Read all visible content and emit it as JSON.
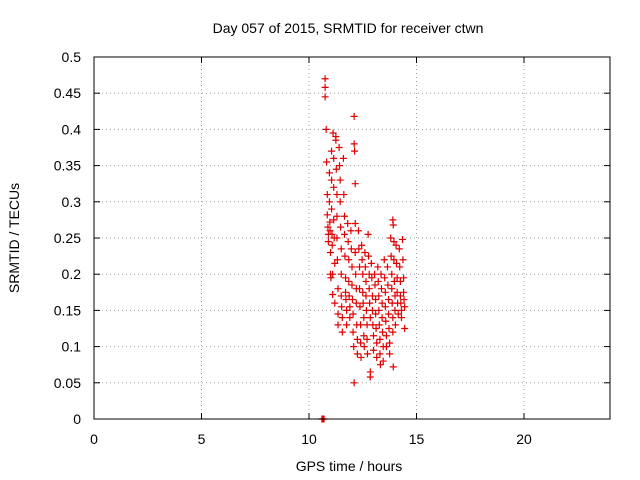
{
  "chart_data": {
    "type": "scatter",
    "title": "Day 057 of 2015, SRMTID for receiver ctwn",
    "xlabel": "GPS time / hours",
    "ylabel": "SRMTID / TECUs",
    "xlim": [
      0,
      24
    ],
    "ylim": [
      0,
      0.5
    ],
    "grid": true,
    "x_ticks": [
      0,
      5,
      10,
      15,
      20
    ],
    "x_tick_labels": [
      "0",
      "5",
      "10",
      "15",
      "20"
    ],
    "y_ticks": [
      0,
      0.05,
      0.1,
      0.15,
      0.2,
      0.25,
      0.3,
      0.35,
      0.4,
      0.45,
      0.5
    ],
    "y_tick_labels": [
      "0",
      "0.05",
      "0.1",
      "0.15",
      "0.2",
      "0.25",
      "0.3",
      "0.35",
      "0.4",
      "0.45",
      "0.5"
    ],
    "marker": "plus",
    "colors": {
      "series": "#e00000",
      "grid": "#a0a0a0",
      "axis": "#000000"
    },
    "series": [
      {
        "name": "SRMTID",
        "points": [
          [
            10.6,
            0.0
          ],
          [
            10.65,
            0.0
          ],
          [
            10.7,
            0.0
          ],
          [
            10.75,
            0.47
          ],
          [
            10.75,
            0.458
          ],
          [
            10.75,
            0.445
          ],
          [
            10.8,
            0.4
          ],
          [
            10.82,
            0.355
          ],
          [
            10.85,
            0.31
          ],
          [
            10.85,
            0.282
          ],
          [
            10.88,
            0.265
          ],
          [
            10.9,
            0.255
          ],
          [
            10.9,
            0.245
          ],
          [
            10.95,
            0.34
          ],
          [
            10.95,
            0.3
          ],
          [
            10.97,
            0.272
          ],
          [
            10.98,
            0.26
          ],
          [
            11.0,
            0.23
          ],
          [
            11.0,
            0.2
          ],
          [
            11.02,
            0.195
          ],
          [
            11.05,
            0.37
          ],
          [
            11.05,
            0.33
          ],
          [
            11.05,
            0.29
          ],
          [
            11.07,
            0.255
          ],
          [
            11.08,
            0.24
          ],
          [
            11.1,
            0.2
          ],
          [
            11.1,
            0.172
          ],
          [
            11.12,
            0.395
          ],
          [
            11.15,
            0.36
          ],
          [
            11.15,
            0.32
          ],
          [
            11.15,
            0.275
          ],
          [
            11.17,
            0.25
          ],
          [
            11.2,
            0.215
          ],
          [
            11.2,
            0.16
          ],
          [
            11.25,
            0.39
          ],
          [
            11.25,
            0.385
          ],
          [
            11.27,
            0.345
          ],
          [
            11.3,
            0.31
          ],
          [
            11.3,
            0.28
          ],
          [
            11.3,
            0.25
          ],
          [
            11.32,
            0.22
          ],
          [
            11.35,
            0.18
          ],
          [
            11.35,
            0.145
          ],
          [
            11.35,
            0.13
          ],
          [
            11.4,
            0.375
          ],
          [
            11.42,
            0.35
          ],
          [
            11.45,
            0.33
          ],
          [
            11.45,
            0.3
          ],
          [
            11.47,
            0.265
          ],
          [
            11.5,
            0.235
          ],
          [
            11.5,
            0.2
          ],
          [
            11.5,
            0.17
          ],
          [
            11.52,
            0.155
          ],
          [
            11.55,
            0.14
          ],
          [
            11.55,
            0.12
          ],
          [
            11.6,
            0.36
          ],
          [
            11.62,
            0.31
          ],
          [
            11.65,
            0.28
          ],
          [
            11.65,
            0.255
          ],
          [
            11.67,
            0.225
          ],
          [
            11.7,
            0.195
          ],
          [
            11.7,
            0.175
          ],
          [
            11.72,
            0.165
          ],
          [
            11.75,
            0.15
          ],
          [
            11.75,
            0.13
          ],
          [
            11.8,
            0.27
          ],
          [
            11.82,
            0.245
          ],
          [
            11.85,
            0.22
          ],
          [
            11.85,
            0.19
          ],
          [
            11.87,
            0.17
          ],
          [
            11.9,
            0.155
          ],
          [
            11.9,
            0.14
          ],
          [
            11.95,
            0.26
          ],
          [
            11.97,
            0.235
          ],
          [
            12.0,
            0.21
          ],
          [
            12.0,
            0.185
          ],
          [
            12.02,
            0.165
          ],
          [
            12.05,
            0.145
          ],
          [
            12.05,
            0.12
          ],
          [
            12.08,
            0.1
          ],
          [
            12.1,
            0.418
          ],
          [
            12.1,
            0.38
          ],
          [
            12.12,
            0.37
          ],
          [
            12.15,
            0.325
          ],
          [
            12.15,
            0.27
          ],
          [
            12.15,
            0.23
          ],
          [
            12.17,
            0.2
          ],
          [
            12.2,
            0.18
          ],
          [
            12.2,
            0.16
          ],
          [
            12.22,
            0.13
          ],
          [
            12.25,
            0.11
          ],
          [
            12.25,
            0.09
          ],
          [
            12.1,
            0.05
          ],
          [
            12.3,
            0.26
          ],
          [
            12.32,
            0.235
          ],
          [
            12.35,
            0.21
          ],
          [
            12.35,
            0.18
          ],
          [
            12.37,
            0.155
          ],
          [
            12.4,
            0.13
          ],
          [
            12.4,
            0.105
          ],
          [
            12.42,
            0.085
          ],
          [
            12.45,
            0.24
          ],
          [
            12.47,
            0.22
          ],
          [
            12.5,
            0.2
          ],
          [
            12.5,
            0.175
          ],
          [
            12.52,
            0.16
          ],
          [
            12.55,
            0.14
          ],
          [
            12.55,
            0.115
          ],
          [
            12.57,
            0.1
          ],
          [
            12.6,
            0.23
          ],
          [
            12.62,
            0.21
          ],
          [
            12.65,
            0.19
          ],
          [
            12.65,
            0.17
          ],
          [
            12.67,
            0.15
          ],
          [
            12.7,
            0.13
          ],
          [
            12.7,
            0.11
          ],
          [
            12.72,
            0.09
          ],
          [
            12.75,
            0.255
          ],
          [
            12.77,
            0.225
          ],
          [
            12.8,
            0.2
          ],
          [
            12.8,
            0.18
          ],
          [
            12.82,
            0.16
          ],
          [
            12.85,
            0.14
          ],
          [
            12.85,
            0.065
          ],
          [
            12.85,
            0.058
          ],
          [
            12.9,
            0.215
          ],
          [
            12.92,
            0.195
          ],
          [
            12.95,
            0.17
          ],
          [
            12.95,
            0.15
          ],
          [
            12.97,
            0.13
          ],
          [
            13.0,
            0.115
          ],
          [
            13.0,
            0.095
          ],
          [
            13.05,
            0.2
          ],
          [
            13.07,
            0.185
          ],
          [
            13.1,
            0.165
          ],
          [
            13.1,
            0.145
          ],
          [
            13.12,
            0.125
          ],
          [
            13.15,
            0.105
          ],
          [
            13.15,
            0.085
          ],
          [
            13.2,
            0.21
          ],
          [
            13.22,
            0.19
          ],
          [
            13.25,
            0.17
          ],
          [
            13.25,
            0.15
          ],
          [
            13.27,
            0.13
          ],
          [
            13.3,
            0.11
          ],
          [
            13.3,
            0.09
          ],
          [
            13.32,
            0.075
          ],
          [
            13.35,
            0.2
          ],
          [
            13.37,
            0.18
          ],
          [
            13.4,
            0.16
          ],
          [
            13.4,
            0.14
          ],
          [
            13.42,
            0.12
          ],
          [
            13.45,
            0.1
          ],
          [
            13.45,
            0.08
          ],
          [
            13.5,
            0.22
          ],
          [
            13.52,
            0.195
          ],
          [
            13.55,
            0.175
          ],
          [
            13.55,
            0.155
          ],
          [
            13.57,
            0.135
          ],
          [
            13.6,
            0.115
          ],
          [
            13.6,
            0.1
          ],
          [
            13.65,
            0.21
          ],
          [
            13.67,
            0.185
          ],
          [
            13.7,
            0.165
          ],
          [
            13.7,
            0.145
          ],
          [
            13.72,
            0.125
          ],
          [
            13.75,
            0.105
          ],
          [
            13.75,
            0.09
          ],
          [
            13.8,
            0.25
          ],
          [
            13.82,
            0.225
          ],
          [
            13.85,
            0.2
          ],
          [
            13.85,
            0.18
          ],
          [
            13.87,
            0.16
          ],
          [
            13.9,
            0.14
          ],
          [
            13.9,
            0.12
          ],
          [
            13.92,
            0.072
          ],
          [
            13.9,
            0.275
          ],
          [
            13.92,
            0.268
          ],
          [
            13.95,
            0.245
          ],
          [
            13.95,
            0.22
          ],
          [
            13.97,
            0.19
          ],
          [
            14.0,
            0.17
          ],
          [
            14.0,
            0.15
          ],
          [
            14.02,
            0.13
          ],
          [
            14.05,
            0.24
          ],
          [
            14.07,
            0.215
          ],
          [
            14.1,
            0.195
          ],
          [
            14.1,
            0.175
          ],
          [
            14.12,
            0.16
          ],
          [
            14.15,
            0.145
          ],
          [
            14.2,
            0.235
          ],
          [
            14.22,
            0.21
          ],
          [
            14.25,
            0.19
          ],
          [
            14.25,
            0.17
          ],
          [
            14.27,
            0.16
          ],
          [
            14.3,
            0.15
          ],
          [
            14.3,
            0.14
          ],
          [
            14.35,
            0.248
          ],
          [
            14.37,
            0.22
          ],
          [
            14.4,
            0.195
          ],
          [
            14.4,
            0.175
          ],
          [
            14.42,
            0.165
          ],
          [
            14.45,
            0.155
          ],
          [
            14.45,
            0.125
          ]
        ]
      }
    ]
  }
}
